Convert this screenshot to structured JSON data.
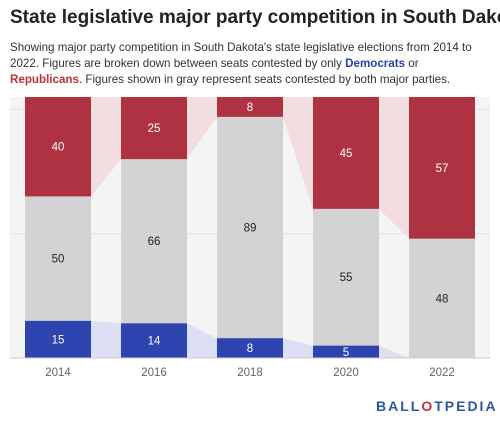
{
  "header": {
    "title": "State legislative major party competition in South Dakota",
    "subtitle_pre": "Showing major party competition in South Dakota's state legislative elections from 2014 to 2022. Figures are broken down between seats contested by only ",
    "subtitle_dem": "Democrats",
    "subtitle_or": " or ",
    "subtitle_rep": "Republicans",
    "subtitle_post": ". Figures shown in gray represent seats contested by both major parties."
  },
  "logo": {
    "left": "BALL",
    "mid": "O",
    "right": "TPEDIA"
  },
  "colors": {
    "democrats": "#2e45b0",
    "republicans": "#ae3242",
    "both": "#d3d3d3",
    "dem_band": "#dde0f4",
    "rep_band": "#f4dde1",
    "both_band": "#f4f4f4"
  },
  "chart_data": {
    "type": "bar",
    "stacked": true,
    "categories": [
      "2014",
      "2016",
      "2018",
      "2020",
      "2022"
    ],
    "series": [
      {
        "name": "Democrats",
        "values": [
          15,
          14,
          8,
          5,
          0
        ]
      },
      {
        "name": "Both",
        "values": [
          50,
          66,
          89,
          55,
          48
        ]
      },
      {
        "name": "Republicans",
        "values": [
          40,
          25,
          8,
          45,
          57
        ]
      }
    ],
    "labels": [
      [
        "15",
        "14",
        "8",
        "5",
        ""
      ],
      [
        "50",
        "66",
        "89",
        "55",
        "48"
      ],
      [
        "40",
        "25",
        "8",
        "45",
        "57"
      ]
    ],
    "ylim": [
      0,
      105
    ],
    "grid": true,
    "xlabel": "",
    "ylabel": ""
  }
}
